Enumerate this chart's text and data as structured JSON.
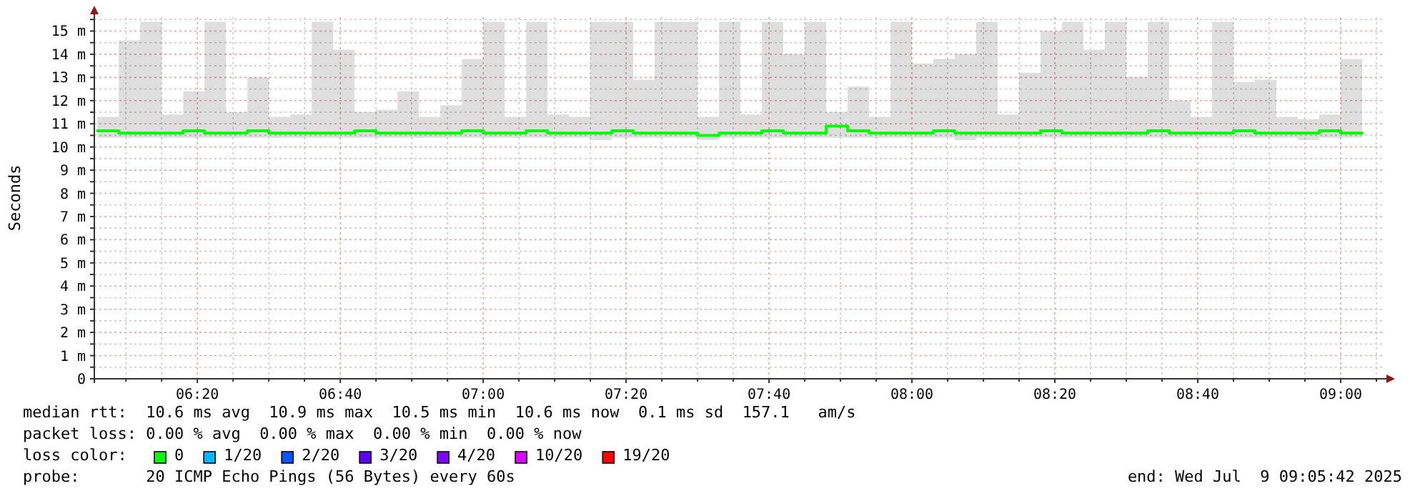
{
  "chart_data": {
    "type": "step",
    "ylabel": "Seconds",
    "x": [
      6.1,
      6.15,
      6.2,
      6.25,
      6.3,
      6.35,
      6.4,
      6.45,
      6.5,
      6.55,
      6.6,
      6.65,
      6.7,
      6.75,
      6.8,
      6.85,
      6.9,
      6.95,
      7.0,
      7.05,
      7.1,
      7.15,
      7.2,
      7.25,
      7.3,
      7.35,
      7.4,
      7.45,
      7.5,
      7.55,
      7.6,
      7.65,
      7.7,
      7.75,
      7.8,
      7.85,
      7.9,
      7.95,
      8.0,
      8.05,
      8.1,
      8.15,
      8.2,
      8.25,
      8.3,
      8.35,
      8.4,
      8.45,
      8.5,
      8.55,
      8.6,
      8.65,
      8.7,
      8.75,
      8.8,
      8.85,
      8.9,
      8.95,
      9.0,
      9.05
    ],
    "series": [
      {
        "name": "0",
        "color": "#00ff00",
        "values": [
          10.7,
          10.6,
          10.6,
          10.6,
          10.7,
          10.6,
          10.6,
          10.7,
          10.6,
          10.6,
          10.6,
          10.6,
          10.7,
          10.6,
          10.6,
          10.6,
          10.6,
          10.7,
          10.6,
          10.6,
          10.7,
          10.6,
          10.6,
          10.6,
          10.7,
          10.6,
          10.6,
          10.6,
          10.5,
          10.6,
          10.6,
          10.7,
          10.6,
          10.6,
          10.9,
          10.7,
          10.6,
          10.6,
          10.6,
          10.7,
          10.6,
          10.6,
          10.6,
          10.6,
          10.7,
          10.6,
          10.6,
          10.6,
          10.6,
          10.7,
          10.6,
          10.6,
          10.6,
          10.7,
          10.6,
          10.6,
          10.6,
          10.7,
          10.6,
          10.6
        ],
        "lower": [
          10.4,
          10.4,
          10.4,
          10.4,
          10.4,
          10.4,
          10.4,
          10.4,
          10.4,
          10.4,
          10.4,
          10.4,
          10.4,
          10.4,
          10.4,
          10.4,
          10.4,
          10.4,
          10.4,
          10.4,
          10.4,
          10.4,
          10.4,
          10.3,
          10.4,
          10.4,
          10.4,
          10.4,
          10.3,
          10.4,
          10.4,
          10.4,
          10.4,
          10.4,
          10.4,
          10.4,
          10.4,
          10.4,
          10.4,
          10.4,
          10.3,
          10.4,
          10.4,
          10.4,
          10.4,
          10.4,
          10.4,
          10.4,
          10.4,
          10.4,
          10.4,
          10.4,
          10.4,
          10.4,
          10.4,
          10.4,
          10.3,
          10.4,
          10.4,
          10.4
        ],
        "upper": [
          11.3,
          14.6,
          15.4,
          11.4,
          12.4,
          15.4,
          11.5,
          13.0,
          11.3,
          11.4,
          15.4,
          14.2,
          11.5,
          11.6,
          12.4,
          11.3,
          11.8,
          13.8,
          15.4,
          11.3,
          15.4,
          11.4,
          11.3,
          15.4,
          15.4,
          12.9,
          15.4,
          15.4,
          11.3,
          15.4,
          11.4,
          15.4,
          14.0,
          15.4,
          11.5,
          12.6,
          11.3,
          15.4,
          13.6,
          13.8,
          14.0,
          15.4,
          11.4,
          13.2,
          15.0,
          15.4,
          14.2,
          15.4,
          13.0,
          15.4,
          12.0,
          11.3,
          15.4,
          12.8,
          12.9,
          11.3,
          11.2,
          11.4,
          13.8,
          11.2
        ]
      },
      {
        "name": "1/20",
        "color": "#00b8ff",
        "values": [
          null,
          null,
          null,
          null,
          null,
          null,
          null,
          null,
          null,
          null,
          null,
          null,
          null,
          null,
          null,
          null,
          null,
          null,
          null,
          null,
          null,
          null,
          null,
          null,
          null,
          null,
          null,
          null,
          null,
          null,
          null,
          null,
          null,
          null,
          null,
          null,
          null,
          null,
          null,
          null,
          null,
          null,
          null,
          null,
          null,
          null,
          null,
          null,
          null,
          null,
          null,
          null,
          null,
          null,
          null,
          null,
          null,
          null,
          null,
          null
        ]
      },
      {
        "name": "2/20",
        "color": "#0059ff",
        "values": [
          null,
          null,
          null,
          null,
          null,
          null,
          null,
          null,
          null,
          null,
          null,
          null,
          null,
          null,
          null,
          null,
          null,
          null,
          null,
          null,
          null,
          null,
          null,
          null,
          null,
          null,
          null,
          null,
          null,
          null,
          null,
          null,
          null,
          null,
          null,
          null,
          null,
          null,
          null,
          null,
          null,
          null,
          null,
          null,
          null,
          null,
          null,
          null,
          null,
          null,
          null,
          null,
          null,
          null,
          null,
          null,
          null,
          null,
          null,
          null
        ]
      },
      {
        "name": "3/20",
        "color": "#5e00ff",
        "values": [
          null,
          null,
          null,
          null,
          null,
          null,
          null,
          null,
          null,
          null,
          null,
          null,
          null,
          null,
          null,
          null,
          null,
          null,
          null,
          null,
          null,
          null,
          null,
          null,
          null,
          null,
          null,
          null,
          null,
          null,
          null,
          null,
          null,
          null,
          null,
          null,
          null,
          null,
          null,
          null,
          null,
          null,
          null,
          null,
          null,
          null,
          null,
          null,
          null,
          null,
          null,
          null,
          null,
          null,
          null,
          null,
          null,
          null,
          null,
          null
        ]
      },
      {
        "name": "4/20",
        "color": "#7e00ff",
        "values": [
          null,
          null,
          null,
          null,
          null,
          null,
          null,
          null,
          null,
          null,
          null,
          null,
          null,
          null,
          null,
          null,
          null,
          null,
          null,
          null,
          null,
          null,
          null,
          null,
          null,
          null,
          null,
          null,
          null,
          null,
          null,
          null,
          null,
          null,
          null,
          null,
          null,
          null,
          null,
          null,
          null,
          null,
          null,
          null,
          null,
          null,
          null,
          null,
          null,
          null,
          null,
          null,
          null,
          null,
          null,
          null,
          null,
          null,
          null,
          null
        ]
      },
      {
        "name": "10/20",
        "color": "#dd00ff",
        "values": [
          null,
          null,
          null,
          null,
          null,
          null,
          null,
          null,
          null,
          null,
          null,
          null,
          null,
          null,
          null,
          null,
          null,
          null,
          null,
          null,
          null,
          null,
          null,
          null,
          null,
          null,
          null,
          null,
          null,
          null,
          null,
          null,
          null,
          null,
          null,
          null,
          null,
          null,
          null,
          null,
          null,
          null,
          null,
          null,
          null,
          null,
          null,
          null,
          null,
          null,
          null,
          null,
          null,
          null,
          null,
          null,
          null,
          null,
          null,
          null
        ]
      },
      {
        "name": "19/20",
        "color": "#ff0000",
        "values": [
          null,
          null,
          null,
          null,
          null,
          null,
          null,
          null,
          null,
          null,
          null,
          null,
          null,
          null,
          null,
          null,
          null,
          null,
          null,
          null,
          null,
          null,
          null,
          null,
          null,
          null,
          null,
          null,
          null,
          null,
          null,
          null,
          null,
          null,
          null,
          null,
          null,
          null,
          null,
          null,
          null,
          null,
          null,
          null,
          null,
          null,
          null,
          null,
          null,
          null,
          null,
          null,
          null,
          null,
          null,
          null,
          null,
          null,
          null,
          null
        ]
      }
    ],
    "xlim": [
      6.093,
      9.1
    ],
    "xticks": [
      {
        "value": 6.1667,
        "label": null
      },
      {
        "value": 6.25,
        "label": null
      },
      {
        "value": 6.3333,
        "label": "06:20"
      },
      {
        "value": 6.4167,
        "label": null
      },
      {
        "value": 6.5,
        "label": null
      },
      {
        "value": 6.5833,
        "label": null
      },
      {
        "value": 6.6667,
        "label": "06:40"
      },
      {
        "value": 6.75,
        "label": null
      },
      {
        "value": 6.8333,
        "label": null
      },
      {
        "value": 6.9167,
        "label": null
      },
      {
        "value": 7,
        "label": "07:00"
      },
      {
        "value": 7.0833,
        "label": null
      },
      {
        "value": 7.1667,
        "label": null
      },
      {
        "value": 7.25,
        "label": null
      },
      {
        "value": 7.3333,
        "label": "07:20"
      },
      {
        "value": 7.4167,
        "label": null
      },
      {
        "value": 7.5,
        "label": null
      },
      {
        "value": 7.5833,
        "label": null
      },
      {
        "value": 7.6667,
        "label": "07:40"
      },
      {
        "value": 7.75,
        "label": null
      },
      {
        "value": 7.8333,
        "label": null
      },
      {
        "value": 7.9167,
        "label": null
      },
      {
        "value": 8,
        "label": "08:00"
      },
      {
        "value": 8.0833,
        "label": null
      },
      {
        "value": 8.1667,
        "label": null
      },
      {
        "value": 8.25,
        "label": null
      },
      {
        "value": 8.3333,
        "label": "08:20"
      },
      {
        "value": 8.4167,
        "label": null
      },
      {
        "value": 8.5,
        "label": null
      },
      {
        "value": 8.5833,
        "label": null
      },
      {
        "value": 8.6667,
        "label": "08:40"
      },
      {
        "value": 8.75,
        "label": null
      },
      {
        "value": 8.8333,
        "label": null
      },
      {
        "value": 8.9167,
        "label": null
      },
      {
        "value": 9,
        "label": "09:00"
      },
      {
        "value": 9.0833,
        "label": null
      }
    ],
    "ylim": [
      0,
      15.6
    ],
    "yticks": [
      0,
      {
        "value": 0.5,
        "label": null
      },
      {
        "value": 1,
        "label": "1 m"
      },
      {
        "value": 1.5,
        "label": null
      },
      {
        "value": 2,
        "label": "2 m"
      },
      {
        "value": 2.5,
        "label": null
      },
      {
        "value": 3,
        "label": "3 m"
      },
      {
        "value": 3.5,
        "label": null
      },
      {
        "value": 4,
        "label": "4 m"
      },
      {
        "value": 4.5,
        "label": null
      },
      {
        "value": 5,
        "label": "5 m"
      },
      {
        "value": 5.5,
        "label": null
      },
      {
        "value": 6,
        "label": "6 m"
      },
      {
        "value": 6.5,
        "label": null
      },
      {
        "value": 7,
        "label": "7 m"
      },
      {
        "value": 7.5,
        "label": null
      },
      {
        "value": 8,
        "label": "8 m"
      },
      {
        "value": 8.5,
        "label": null
      },
      {
        "value": 9,
        "label": "9 m"
      },
      {
        "value": 9.5,
        "label": null
      },
      {
        "value": 10,
        "label": "10 m"
      },
      {
        "value": 10.5,
        "label": null
      },
      {
        "value": 11,
        "label": "11 m"
      },
      {
        "value": 11.5,
        "label": null
      },
      {
        "value": 12,
        "label": "12 m"
      },
      {
        "value": 12.5,
        "label": null
      },
      {
        "value": 13,
        "label": "13 m"
      },
      {
        "value": 13.5,
        "label": null
      },
      {
        "value": 14,
        "label": "14 m"
      },
      {
        "value": 14.5,
        "label": null
      },
      {
        "value": 15,
        "label": "15 m"
      },
      {
        "value": 15.5,
        "label": null
      }
    ],
    "grid": true,
    "legend": "bottom",
    "annotations": [
      "median rtt:  10.6 ms avg  10.9 ms max  10.5 ms min  10.6 ms now  0.1 ms sd  157.1   am/s",
      "packet loss: 0.00 % avg  0.00 % max  0.00 % min  0.00 % now",
      "loss color:",
      "probe:       20 ICMP Echo Pings (56 Bytes) every 60s",
      "end: Wed Jul  9 09:05:42 2025"
    ]
  }
}
